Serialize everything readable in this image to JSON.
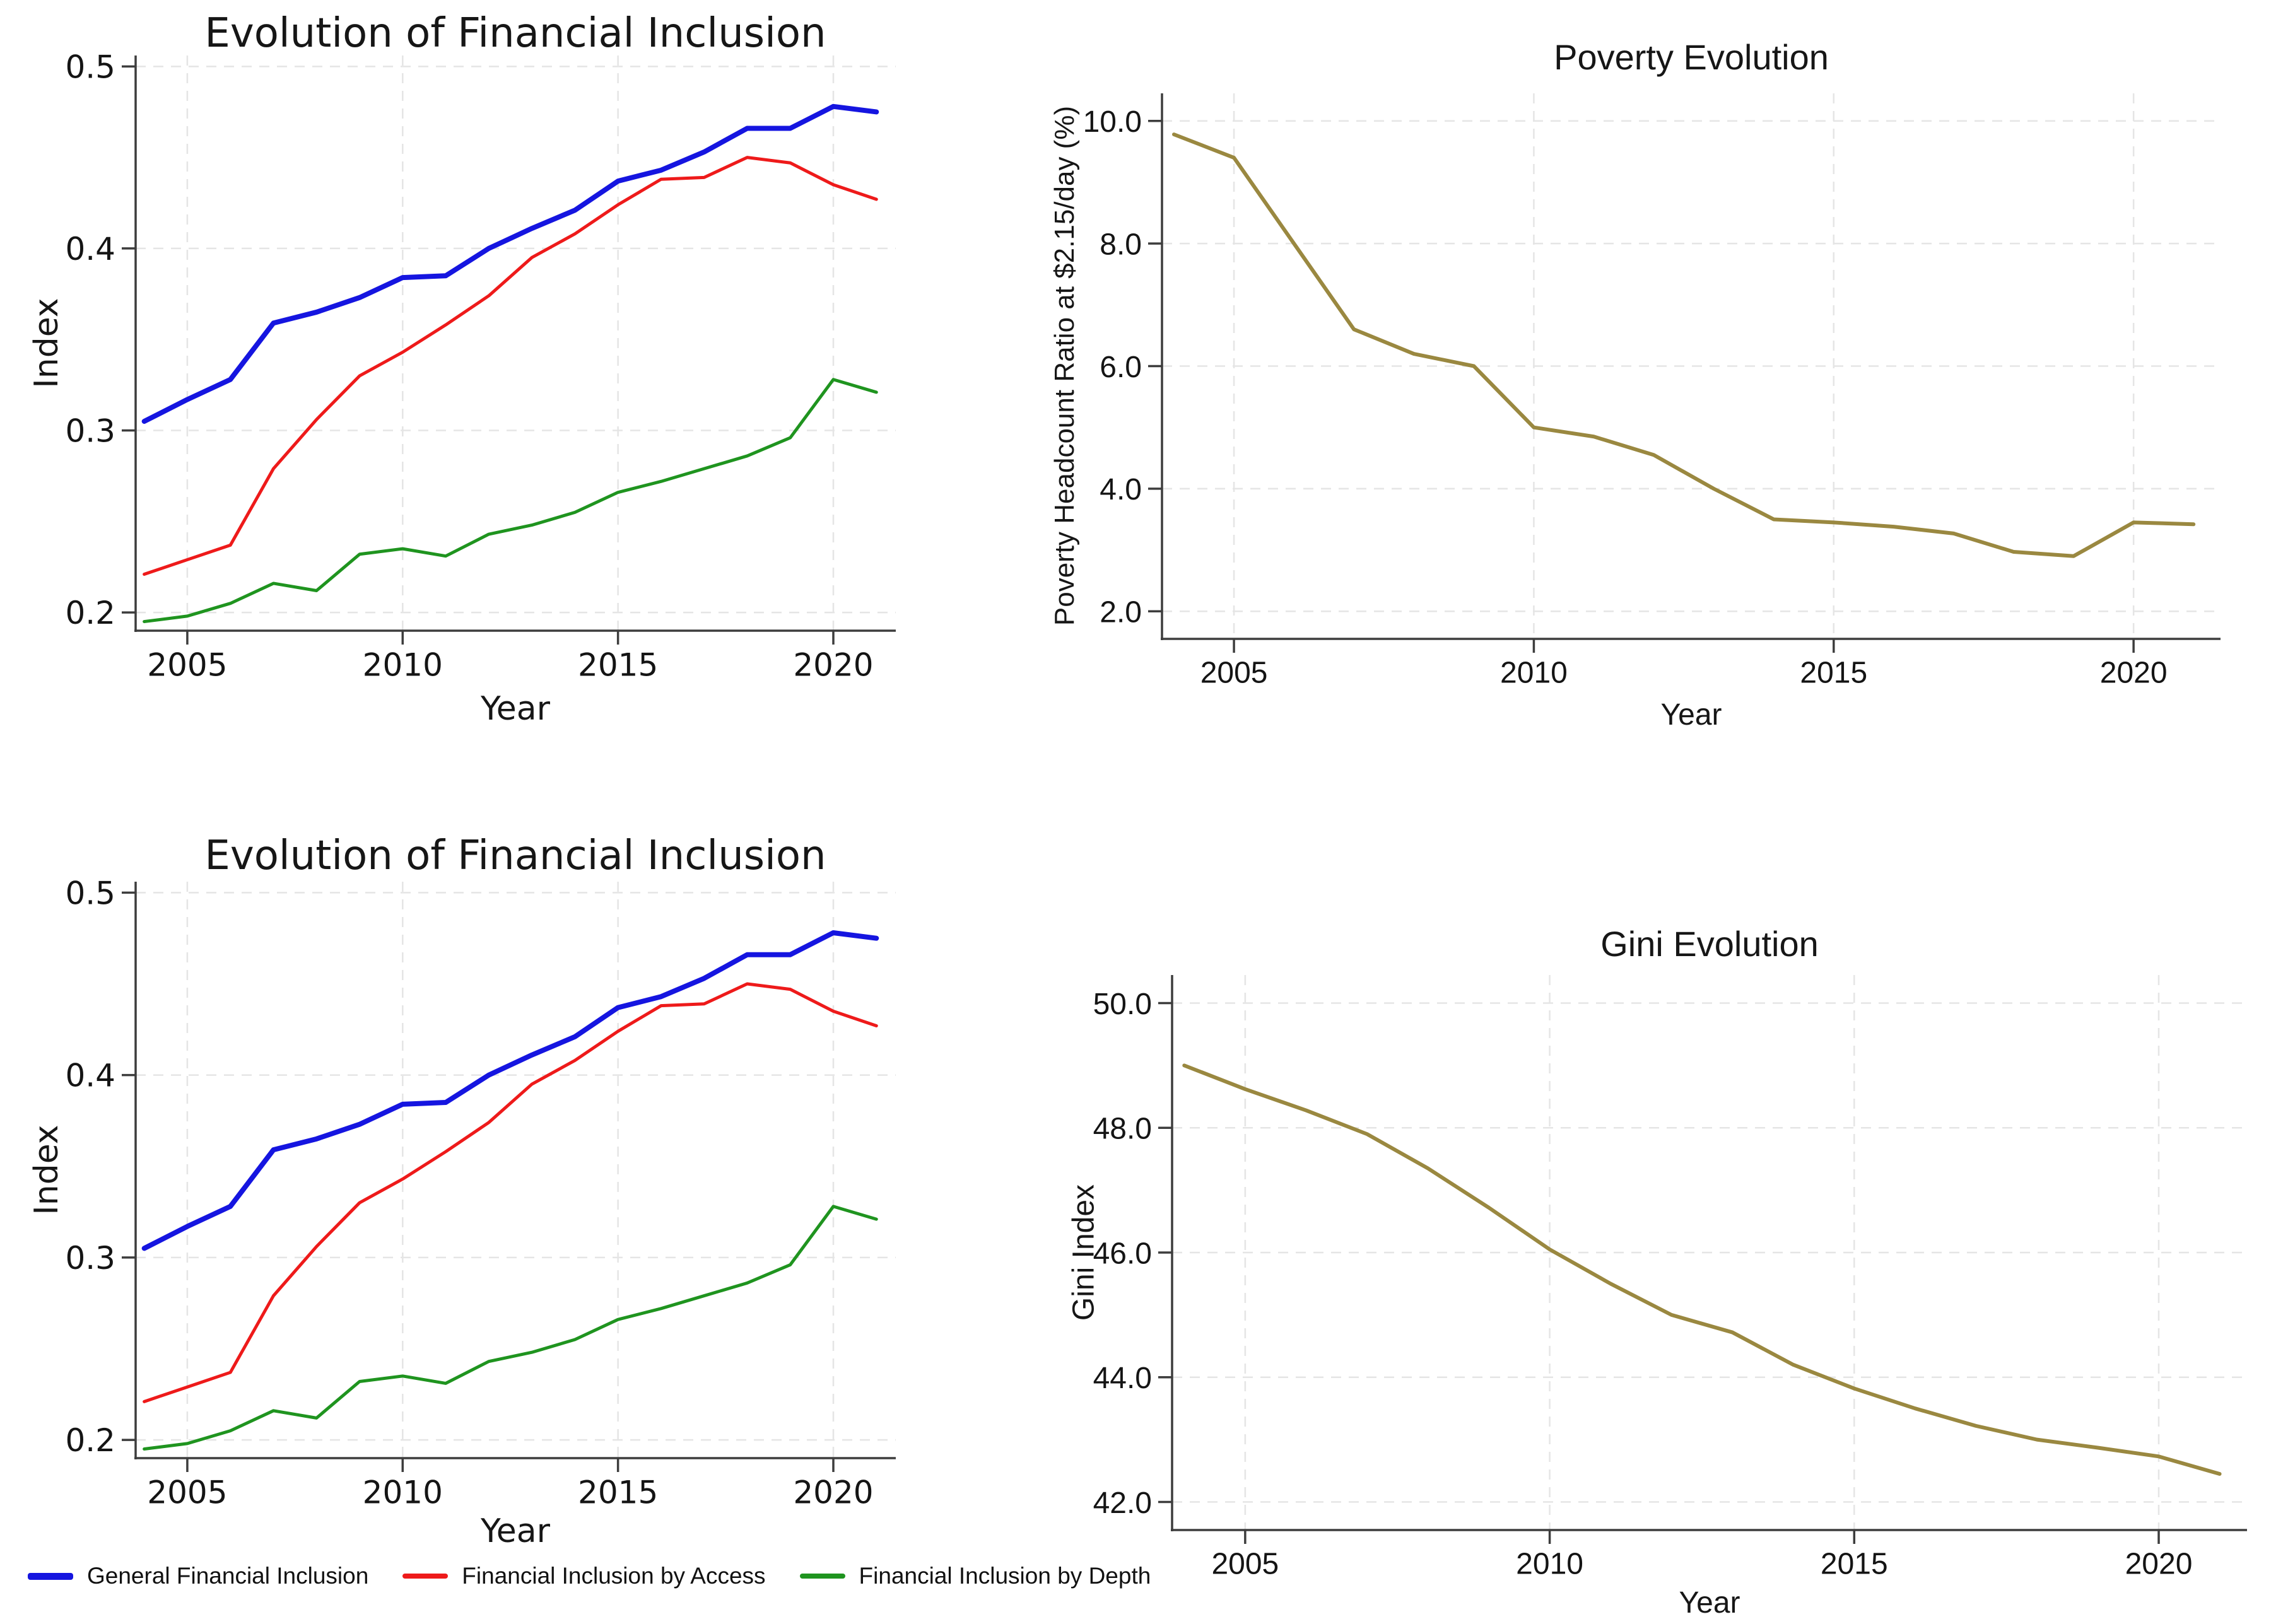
{
  "page_background": "#ffffff",
  "colors": {
    "general_inclusion": "#1515e0",
    "inclusion_access": "#ee1a1a",
    "inclusion_depth": "#1f941f",
    "poverty_gini_line": "#9a8840",
    "axis": "#3d3d3d",
    "grid": "#e5e5e5",
    "text": "#141414"
  },
  "chart_data": [
    {
      "type": "line",
      "title": "Evolution of Financial Inclusion",
      "xlabel": "Year",
      "ylabel": "Index",
      "x": [
        2004,
        2005,
        2006,
        2007,
        2008,
        2009,
        2010,
        2011,
        2012,
        2013,
        2014,
        2015,
        2016,
        2017,
        2018,
        2019,
        2020,
        2021
      ],
      "xlim": [
        2003.8,
        2021.45
      ],
      "ylim": [
        0.19,
        0.506
      ],
      "xticks": [
        2005,
        2010,
        2015,
        2020
      ],
      "xtick_labels": [
        "2005",
        "2010",
        "2015",
        "2020"
      ],
      "yticks": [
        0.2,
        0.3,
        0.4,
        0.5
      ],
      "ytick_labels": [
        "0.2",
        "0.3",
        "0.4",
        "0.5"
      ],
      "grid": true,
      "series": [
        {
          "name": "General Financial Inclusion",
          "color": "#1515e0",
          "width": 8,
          "values": [
            0.305,
            0.317,
            0.328,
            0.359,
            0.365,
            0.373,
            0.384,
            0.385,
            0.4,
            0.411,
            0.421,
            0.437,
            0.443,
            0.453,
            0.466,
            0.466,
            0.478,
            0.475
          ]
        },
        {
          "name": "Financial Inclusion by Access",
          "color": "#ee1a1a",
          "width": 5,
          "values": [
            0.221,
            0.229,
            0.237,
            0.279,
            0.306,
            0.33,
            0.343,
            0.358,
            0.374,
            0.395,
            0.408,
            0.424,
            0.438,
            0.439,
            0.45,
            0.447,
            0.435,
            0.427
          ]
        },
        {
          "name": "Financial Inclusion by Depth",
          "color": "#1f941f",
          "width": 5,
          "values": [
            0.195,
            0.198,
            0.205,
            0.216,
            0.212,
            0.232,
            0.235,
            0.231,
            0.243,
            0.248,
            0.255,
            0.266,
            0.272,
            0.279,
            0.286,
            0.296,
            0.328,
            0.321
          ]
        }
      ]
    },
    {
      "type": "line",
      "title": "Poverty Evolution",
      "xlabel": "Year",
      "ylabel": "Poverty Headcount Ratio at $2.15/day (%)",
      "x": [
        2004,
        2005,
        2006,
        2007,
        2008,
        2009,
        2010,
        2011,
        2012,
        2013,
        2014,
        2015,
        2016,
        2017,
        2018,
        2019,
        2020,
        2021
      ],
      "xlim": [
        2003.8,
        2021.45
      ],
      "ylim": [
        1.55,
        10.45
      ],
      "xticks": [
        2005,
        2010,
        2015,
        2020
      ],
      "xtick_labels": [
        "2005",
        "2010",
        "2015",
        "2020"
      ],
      "yticks": [
        2,
        4,
        6,
        8,
        10
      ],
      "ytick_labels": [
        "2.0",
        "4.0",
        "6.0",
        "8.0",
        "10.0"
      ],
      "grid": true,
      "series": [
        {
          "name": "Poverty Headcount Ratio at $2.15/day",
          "color": "#9a8840",
          "width": 6,
          "values": [
            9.78,
            9.4,
            8.0,
            6.6,
            6.2,
            6.0,
            5.0,
            4.85,
            4.55,
            4.0,
            3.5,
            3.45,
            3.38,
            3.27,
            2.97,
            2.9,
            3.45,
            3.42
          ]
        }
      ]
    },
    {
      "type": "line",
      "title": "Evolution of Financial Inclusion",
      "xlabel": "Year",
      "ylabel": "Index",
      "x": [
        2004,
        2005,
        2006,
        2007,
        2008,
        2009,
        2010,
        2011,
        2012,
        2013,
        2014,
        2015,
        2016,
        2017,
        2018,
        2019,
        2020,
        2021
      ],
      "xlim": [
        2003.8,
        2021.45
      ],
      "ylim": [
        0.19,
        0.506
      ],
      "xticks": [
        2005,
        2010,
        2015,
        2020
      ],
      "xtick_labels": [
        "2005",
        "2010",
        "2015",
        "2020"
      ],
      "yticks": [
        0.2,
        0.3,
        0.4,
        0.5
      ],
      "ytick_labels": [
        "0.2",
        "0.3",
        "0.4",
        "0.5"
      ],
      "grid": true,
      "series": [
        {
          "name": "General Financial Inclusion",
          "color": "#1515e0",
          "width": 8,
          "values": [
            0.305,
            0.317,
            0.328,
            0.359,
            0.365,
            0.373,
            0.384,
            0.385,
            0.4,
            0.411,
            0.421,
            0.437,
            0.443,
            0.453,
            0.466,
            0.466,
            0.478,
            0.475
          ]
        },
        {
          "name": "Financial Inclusion by Access",
          "color": "#ee1a1a",
          "width": 5,
          "values": [
            0.221,
            0.229,
            0.237,
            0.279,
            0.306,
            0.33,
            0.343,
            0.358,
            0.374,
            0.395,
            0.408,
            0.424,
            0.438,
            0.439,
            0.45,
            0.447,
            0.435,
            0.427
          ]
        },
        {
          "name": "Financial Inclusion by Depth",
          "color": "#1f941f",
          "width": 5,
          "values": [
            0.195,
            0.198,
            0.205,
            0.216,
            0.212,
            0.232,
            0.235,
            0.231,
            0.243,
            0.248,
            0.255,
            0.266,
            0.272,
            0.279,
            0.286,
            0.296,
            0.328,
            0.321
          ]
        }
      ],
      "legend": [
        {
          "label": "General Financial Inclusion",
          "color": "#1515e0",
          "line_width": 8
        },
        {
          "label": "Financial Inclusion by Access",
          "color": "#ee1a1a",
          "line_width": 5
        },
        {
          "label": "Financial Inclusion by Depth",
          "color": "#1f941f",
          "line_width": 5
        }
      ],
      "legend_position": "bottom"
    },
    {
      "type": "line",
      "title": "Gini Evolution",
      "xlabel": "Year",
      "ylabel": "Gini Index",
      "x": [
        2004,
        2005,
        2006,
        2007,
        2008,
        2009,
        2010,
        2011,
        2012,
        2013,
        2014,
        2015,
        2016,
        2017,
        2018,
        2019,
        2020,
        2021
      ],
      "xlim": [
        2003.8,
        2021.45
      ],
      "ylim": [
        41.55,
        50.45
      ],
      "xticks": [
        2005,
        2010,
        2015,
        2020
      ],
      "xtick_labels": [
        "2005",
        "2010",
        "2015",
        "2020"
      ],
      "yticks": [
        42,
        44,
        46,
        48,
        50
      ],
      "ytick_labels": [
        "42.0",
        "44.0",
        "46.0",
        "48.0",
        "50.0"
      ],
      "grid": true,
      "series": [
        {
          "name": "Gini Index",
          "color": "#9a8840",
          "width": 6,
          "values": [
            49.0,
            48.62,
            48.28,
            47.9,
            47.35,
            46.72,
            46.05,
            45.5,
            45.0,
            44.72,
            44.2,
            43.82,
            43.5,
            43.22,
            43.0,
            42.87,
            42.73,
            42.45
          ]
        }
      ]
    }
  ]
}
